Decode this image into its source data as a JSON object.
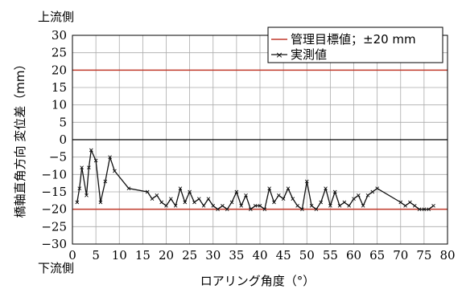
{
  "chart_data": {
    "type": "line",
    "title": "",
    "xlabel": "ロアリング角度（°）",
    "ylabel": "橋軸直角方向 変位差（mm）",
    "upstream_label": "上流側",
    "downstream_label": "下流側",
    "xlim": [
      0,
      80
    ],
    "ylim": [
      -30,
      30
    ],
    "xticks": [
      0,
      5,
      10,
      15,
      20,
      25,
      30,
      35,
      40,
      45,
      50,
      55,
      60,
      65,
      70,
      75,
      80
    ],
    "yticks": [
      30,
      25,
      20,
      15,
      10,
      5,
      0,
      -5,
      -10,
      -15,
      -20,
      -25,
      -30
    ],
    "grid": true,
    "legend_position": "top-right",
    "colors": {
      "threshold": "#c0392b",
      "series": "#111111",
      "grid": "#aaaaaa"
    },
    "threshold": {
      "name": "管理目標値；±20 mm",
      "values": [
        20,
        -20
      ]
    },
    "series": [
      {
        "name": "実測値",
        "x": [
          1,
          1.5,
          2,
          3,
          3.5,
          4,
          5,
          6,
          7,
          8,
          9,
          12,
          16,
          17,
          18,
          19,
          20,
          21,
          22,
          23,
          24,
          25,
          26,
          27,
          28,
          29,
          30,
          31,
          32,
          33,
          34,
          35,
          36,
          37,
          38,
          39,
          40,
          41,
          42,
          43,
          44,
          45,
          46,
          47,
          48,
          49,
          50,
          51,
          52,
          53,
          54,
          55,
          56,
          57,
          58,
          59,
          60,
          61,
          62,
          63,
          64,
          65,
          70,
          71,
          72,
          73,
          74,
          75,
          76,
          77
        ],
        "y": [
          -18,
          -14,
          -8,
          -16,
          -8,
          -3,
          -6,
          -18,
          -12,
          -5,
          -9,
          -14,
          -15,
          -17,
          -16,
          -18,
          -19,
          -17,
          -19,
          -14,
          -18,
          -15,
          -18,
          -17,
          -19,
          -17,
          -19,
          -20,
          -19,
          -20,
          -18,
          -15,
          -19,
          -16,
          -20,
          -19,
          -19,
          -20,
          -14,
          -18,
          -16,
          -17,
          -14,
          -17,
          -19,
          -20,
          -12,
          -19,
          -20,
          -18,
          -14,
          -19,
          -15,
          -19,
          -18,
          -19,
          -17,
          -16,
          -19,
          -16,
          -15,
          -14,
          -18,
          -19,
          -18,
          -19,
          -20,
          -20,
          -20,
          -19
        ]
      }
    ]
  }
}
